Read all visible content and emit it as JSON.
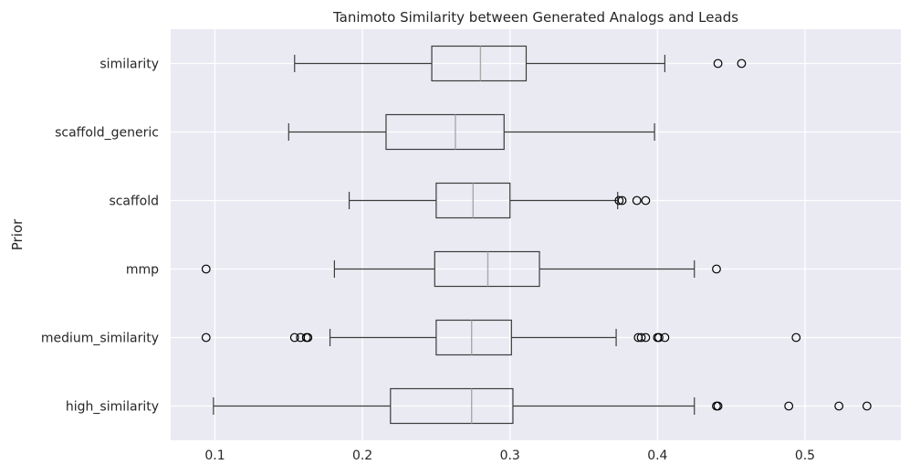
{
  "chart_data": {
    "type": "boxplot",
    "orientation": "horizontal",
    "title": "Tanimoto Similarity between Generated Analogs and Leads",
    "xlabel": "",
    "ylabel": "Prior",
    "xlim": [
      0.07,
      0.565
    ],
    "xticks": [
      0.1,
      0.2,
      0.3,
      0.4,
      0.5
    ],
    "xtick_labels": [
      "0.1",
      "0.2",
      "0.3",
      "0.4",
      "0.5"
    ],
    "grid": true,
    "background": "#eaeaf2",
    "box_color": "#3d3d3d",
    "median_color": "#a9a9a9",
    "categories": [
      "similarity",
      "scaffold_generic",
      "scaffold",
      "mmp",
      "medium_similarity",
      "high_similarity"
    ],
    "boxes": [
      {
        "category": "similarity",
        "whisker_low": 0.154,
        "q1": 0.247,
        "median": 0.28,
        "q3": 0.311,
        "whisker_high": 0.405,
        "outliers": [
          0.441,
          0.457
        ]
      },
      {
        "category": "scaffold_generic",
        "whisker_low": 0.15,
        "q1": 0.216,
        "median": 0.263,
        "q3": 0.296,
        "whisker_high": 0.398,
        "outliers": []
      },
      {
        "category": "scaffold",
        "whisker_low": 0.191,
        "q1": 0.25,
        "median": 0.275,
        "q3": 0.3,
        "whisker_high": 0.373,
        "outliers": [
          0.374,
          0.376,
          0.386,
          0.392
        ]
      },
      {
        "category": "mmp",
        "whisker_low": 0.181,
        "q1": 0.249,
        "median": 0.285,
        "q3": 0.32,
        "whisker_high": 0.425,
        "outliers": [
          0.094,
          0.44
        ]
      },
      {
        "category": "medium_similarity",
        "whisker_low": 0.178,
        "q1": 0.25,
        "median": 0.274,
        "q3": 0.301,
        "whisker_high": 0.372,
        "outliers": [
          0.094,
          0.154,
          0.158,
          0.162,
          0.163,
          0.387,
          0.389,
          0.392,
          0.4,
          0.401,
          0.405,
          0.494
        ]
      },
      {
        "category": "high_similarity",
        "whisker_low": 0.099,
        "q1": 0.219,
        "median": 0.274,
        "q3": 0.302,
        "whisker_high": 0.425,
        "outliers": [
          0.44,
          0.441,
          0.489,
          0.523,
          0.542
        ]
      }
    ]
  }
}
